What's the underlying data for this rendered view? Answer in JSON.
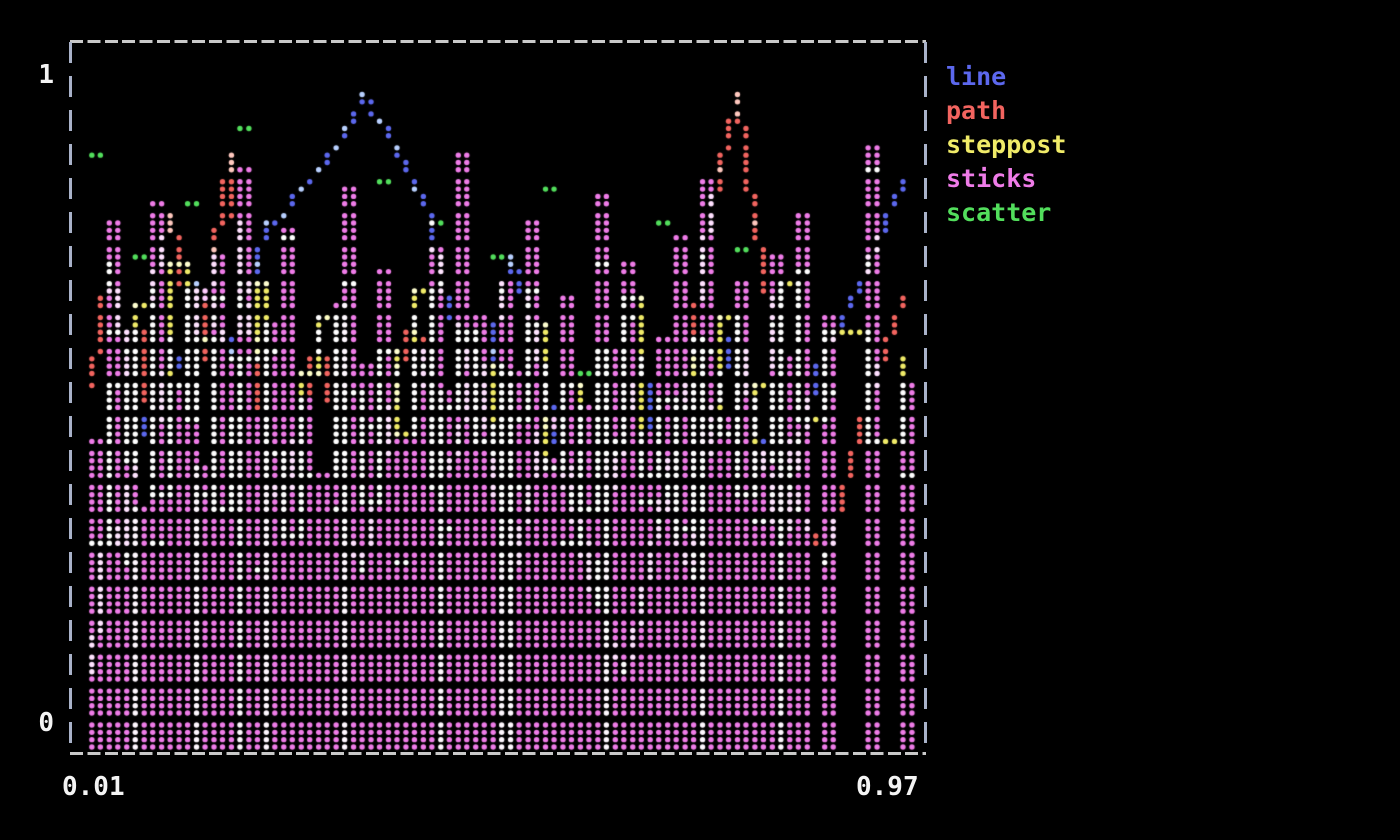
{
  "screen": {
    "background": "#000000"
  },
  "axes": {
    "y_top_label": "1",
    "y_bottom_label": "0",
    "x_left_label": "0.01",
    "x_right_label": "0.97",
    "label_color": "#f4f4f4",
    "border_color_horizontal": "#c9c9c9",
    "border_color_vertical": "#a9b2c9",
    "border_style": "dashed"
  },
  "chart_data": {
    "type": "mixed",
    "renderer": "terminal-braille-dot-plot",
    "blend": "additive",
    "grid": false,
    "legend_position": "right-top",
    "xlim": [
      0.01,
      0.97
    ],
    "ylim": [
      0,
      1
    ],
    "x_tick_labels": [
      "0.01",
      "0.97"
    ],
    "y_tick_labels": [
      "0",
      "1"
    ],
    "x": [
      0.01,
      0.03,
      0.05,
      0.06,
      0.08,
      0.1,
      0.12,
      0.13,
      0.15,
      0.17,
      0.19,
      0.21,
      0.22,
      0.24,
      0.26,
      0.28,
      0.3,
      0.31,
      0.33,
      0.35,
      0.37,
      0.39,
      0.41,
      0.42,
      0.44,
      0.46,
      0.48,
      0.5,
      0.51,
      0.53,
      0.55,
      0.57,
      0.59,
      0.61,
      0.62,
      0.64,
      0.66,
      0.68,
      0.7,
      0.72,
      0.73,
      0.75,
      0.77,
      0.79,
      0.81,
      0.83,
      0.85,
      0.88,
      0.93,
      0.97
    ],
    "series": [
      {
        "name": "line",
        "style": "line",
        "color": "#5c68ee",
        "y": [
          0.12,
          0.35,
          0.28,
          0.52,
          0.44,
          0.61,
          0.55,
          0.7,
          0.64,
          0.58,
          0.66,
          0.72,
          0.78,
          0.8,
          0.83,
          0.86,
          0.9,
          0.93,
          0.97,
          0.94,
          0.9,
          0.84,
          0.78,
          0.7,
          0.62,
          0.55,
          0.6,
          0.68,
          0.74,
          0.66,
          0.54,
          0.42,
          0.3,
          0.22,
          0.35,
          0.47,
          0.58,
          0.44,
          0.32,
          0.25,
          0.4,
          0.55,
          0.63,
          0.5,
          0.38,
          0.28,
          0.45,
          0.6,
          0.72,
          0.85
        ]
      },
      {
        "name": "path",
        "style": "path",
        "color": "#f2645f",
        "y": [
          0.55,
          0.72,
          0.6,
          0.45,
          0.68,
          0.8,
          0.66,
          0.52,
          0.75,
          0.88,
          0.7,
          0.58,
          0.42,
          0.35,
          0.5,
          0.62,
          0.48,
          0.33,
          0.27,
          0.41,
          0.56,
          0.64,
          0.51,
          0.39,
          0.46,
          0.58,
          0.44,
          0.3,
          0.24,
          0.37,
          0.52,
          0.45,
          0.33,
          0.26,
          0.18,
          0.12,
          0.22,
          0.34,
          0.47,
          0.59,
          0.73,
          0.86,
          0.97,
          0.78,
          0.63,
          0.49,
          0.36,
          0.28,
          0.52,
          0.67
        ]
      },
      {
        "name": "steppost",
        "style": "steppost",
        "color": "#f0eb68",
        "y": [
          0.3,
          0.55,
          0.43,
          0.66,
          0.38,
          0.72,
          0.5,
          0.61,
          0.35,
          0.48,
          0.58,
          0.7,
          0.44,
          0.32,
          0.56,
          0.64,
          0.41,
          0.53,
          0.37,
          0.6,
          0.47,
          0.68,
          0.39,
          0.51,
          0.62,
          0.45,
          0.57,
          0.34,
          0.49,
          0.63,
          0.42,
          0.54,
          0.36,
          0.59,
          0.46,
          0.67,
          0.4,
          0.52,
          0.33,
          0.61,
          0.48,
          0.65,
          0.38,
          0.55,
          0.43,
          0.69,
          0.5,
          0.62,
          0.45,
          0.58
        ]
      },
      {
        "name": "sticks",
        "style": "sticks",
        "color": "#ef7ce8",
        "y": [
          0.45,
          0.78,
          0.62,
          0.35,
          0.81,
          0.55,
          0.68,
          0.42,
          0.74,
          0.58,
          0.86,
          0.49,
          0.63,
          0.77,
          0.52,
          0.4,
          0.66,
          0.83,
          0.57,
          0.71,
          0.46,
          0.6,
          0.75,
          0.53,
          0.88,
          0.64,
          0.48,
          0.7,
          0.56,
          0.79,
          0.43,
          0.67,
          0.51,
          0.82,
          0.59,
          0.72,
          0.47,
          0.61,
          0.76,
          0.54,
          0.85,
          0.5,
          0.69,
          0.44,
          0.73,
          0.58,
          0.8,
          0.65,
          0.9,
          0.55
        ]
      },
      {
        "name": "scatter",
        "style": "scatter",
        "color": "#52de5c",
        "y": [
          0.88,
          0.62,
          0.45,
          0.73,
          0.3,
          0.55,
          0.81,
          0.38,
          0.67,
          0.5,
          0.92,
          0.26,
          0.59,
          0.76,
          0.41,
          0.64,
          0.35,
          0.7,
          0.48,
          0.85,
          0.28,
          0.57,
          0.79,
          0.33,
          0.61,
          0.46,
          0.74,
          0.52,
          0.39,
          0.68,
          0.83,
          0.31,
          0.56,
          0.72,
          0.44,
          0.65,
          0.37,
          0.78,
          0.51,
          0.29,
          0.6,
          0.47,
          0.75,
          0.34,
          0.63,
          0.42,
          0.71,
          0.53,
          0.86,
          0.4
        ]
      }
    ]
  }
}
